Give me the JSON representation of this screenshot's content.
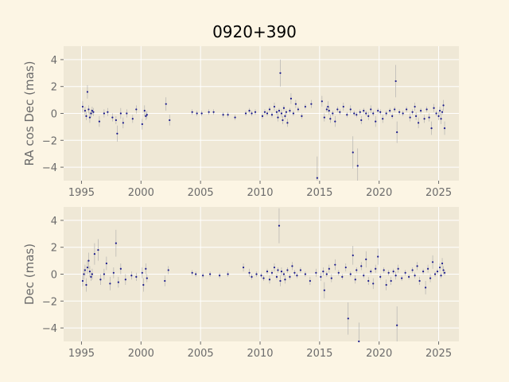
{
  "figure": {
    "title": "0920+390"
  },
  "colors": {
    "background": "#fcf5e4",
    "plot_bg": "#efe8d6",
    "grid": "#ffffff",
    "point": "#1a1a8c",
    "errorbar": "#aaaaaa",
    "tick_text": "#6b6b6b"
  },
  "chart_data": [
    {
      "type": "scatter",
      "ylabel": "RA cos Dec (mas)",
      "xlabel": "",
      "xlim": [
        1993.5,
        2026.7
      ],
      "ylim": [
        -5.0,
        5.0
      ],
      "xticks": [
        1995,
        2000,
        2005,
        2010,
        2015,
        2020,
        2025
      ],
      "yticks": [
        -4,
        -2,
        0,
        2,
        4
      ],
      "grid": true,
      "points": [
        [
          1995.1,
          0.5,
          0.4
        ],
        [
          1995.3,
          0.2,
          0.3
        ],
        [
          1995.4,
          -0.2,
          0.3
        ],
        [
          1995.5,
          1.6,
          0.5
        ],
        [
          1995.6,
          0.3,
          0.3
        ],
        [
          1995.7,
          -0.3,
          0.4
        ],
        [
          1995.8,
          0.0,
          0.3
        ],
        [
          1995.9,
          0.2,
          0.3
        ],
        [
          1996.0,
          0.1,
          0.3
        ],
        [
          1996.5,
          -0.6,
          0.4
        ],
        [
          1996.9,
          0.0,
          0.3
        ],
        [
          1997.2,
          0.1,
          0.3
        ],
        [
          1997.6,
          -0.3,
          0.3
        ],
        [
          1997.9,
          -0.5,
          0.3
        ],
        [
          1998.0,
          -1.5,
          0.6
        ],
        [
          1998.3,
          0.0,
          0.4
        ],
        [
          1998.5,
          -0.7,
          0.4
        ],
        [
          1998.8,
          0.0,
          0.3
        ],
        [
          1999.3,
          -0.4,
          0.3
        ],
        [
          1999.6,
          0.3,
          0.3
        ],
        [
          2000.1,
          -0.8,
          0.4
        ],
        [
          2000.3,
          0.2,
          0.4
        ],
        [
          2000.4,
          -0.2,
          0.3
        ],
        [
          2000.5,
          -0.1,
          0.3
        ],
        [
          2002.1,
          0.7,
          0.5
        ],
        [
          2002.4,
          -0.5,
          0.4
        ],
        [
          2004.3,
          0.1,
          0.2
        ],
        [
          2004.7,
          0.0,
          0.2
        ],
        [
          2005.1,
          0.0,
          0.2
        ],
        [
          2005.7,
          0.1,
          0.2
        ],
        [
          2006.1,
          0.1,
          0.2
        ],
        [
          2006.9,
          -0.1,
          0.2
        ],
        [
          2007.3,
          -0.1,
          0.2
        ],
        [
          2007.9,
          -0.3,
          0.2
        ],
        [
          2008.8,
          0.0,
          0.2
        ],
        [
          2009.1,
          0.2,
          0.2
        ],
        [
          2009.3,
          0.0,
          0.2
        ],
        [
          2009.6,
          0.1,
          0.2
        ],
        [
          2010.2,
          -0.2,
          0.2
        ],
        [
          2010.4,
          0.1,
          0.2
        ],
        [
          2010.6,
          0.0,
          0.2
        ],
        [
          2010.8,
          0.3,
          0.2
        ],
        [
          2011.0,
          -0.1,
          0.2
        ],
        [
          2011.2,
          0.5,
          0.3
        ],
        [
          2011.4,
          0.1,
          0.2
        ],
        [
          2011.5,
          -0.3,
          0.3
        ],
        [
          2011.6,
          0.2,
          0.2
        ],
        [
          2011.7,
          3.0,
          1.0
        ],
        [
          2011.8,
          0.0,
          0.3
        ],
        [
          2011.9,
          -0.5,
          0.3
        ],
        [
          2012.0,
          0.4,
          0.2
        ],
        [
          2012.1,
          -0.2,
          0.2
        ],
        [
          2012.2,
          0.1,
          0.2
        ],
        [
          2012.3,
          -0.7,
          0.3
        ],
        [
          2012.5,
          0.2,
          0.2
        ],
        [
          2012.6,
          1.1,
          0.4
        ],
        [
          2012.8,
          0.0,
          0.2
        ],
        [
          2013.0,
          0.7,
          0.3
        ],
        [
          2013.2,
          0.3,
          0.2
        ],
        [
          2013.5,
          -0.2,
          0.2
        ],
        [
          2013.8,
          0.5,
          0.2
        ],
        [
          2014.3,
          0.7,
          0.3
        ],
        [
          2014.8,
          -4.8,
          1.6
        ],
        [
          2015.2,
          0.9,
          0.4
        ],
        [
          2015.4,
          -0.3,
          0.3
        ],
        [
          2015.6,
          0.3,
          0.2
        ],
        [
          2015.7,
          0.5,
          0.4
        ],
        [
          2015.8,
          0.2,
          0.3
        ],
        [
          2015.9,
          -0.4,
          0.3
        ],
        [
          2016.1,
          0.0,
          0.2
        ],
        [
          2016.3,
          -0.6,
          0.4
        ],
        [
          2016.5,
          0.3,
          0.2
        ],
        [
          2016.7,
          0.1,
          0.2
        ],
        [
          2017.0,
          0.5,
          0.3
        ],
        [
          2017.3,
          -0.1,
          0.2
        ],
        [
          2017.6,
          0.3,
          0.3
        ],
        [
          2017.8,
          -2.9,
          1.2
        ],
        [
          2017.9,
          0.0,
          0.2
        ],
        [
          2018.1,
          -0.1,
          0.2
        ],
        [
          2018.2,
          -3.9,
          1.3
        ],
        [
          2018.4,
          0.1,
          0.2
        ],
        [
          2018.5,
          -0.5,
          0.3
        ],
        [
          2018.7,
          0.2,
          0.2
        ],
        [
          2018.9,
          0.0,
          0.2
        ],
        [
          2019.1,
          -0.2,
          0.3
        ],
        [
          2019.3,
          0.3,
          0.3
        ],
        [
          2019.5,
          0.0,
          0.2
        ],
        [
          2019.7,
          -0.6,
          0.4
        ],
        [
          2019.9,
          0.2,
          0.2
        ],
        [
          2020.1,
          0.1,
          0.2
        ],
        [
          2020.3,
          -0.4,
          0.3
        ],
        [
          2020.6,
          0.0,
          0.2
        ],
        [
          2020.9,
          0.2,
          0.2
        ],
        [
          2021.1,
          -0.2,
          0.2
        ],
        [
          2021.3,
          0.3,
          0.2
        ],
        [
          2021.4,
          2.4,
          1.2
        ],
        [
          2021.5,
          -1.4,
          0.8
        ],
        [
          2021.7,
          0.1,
          0.2
        ],
        [
          2022.0,
          0.0,
          0.2
        ],
        [
          2022.3,
          0.3,
          0.2
        ],
        [
          2022.6,
          -0.3,
          0.3
        ],
        [
          2022.8,
          0.1,
          0.2
        ],
        [
          2023.0,
          0.5,
          0.3
        ],
        [
          2023.1,
          -0.2,
          0.3
        ],
        [
          2023.3,
          -0.7,
          0.4
        ],
        [
          2023.5,
          0.2,
          0.2
        ],
        [
          2023.8,
          -0.4,
          0.3
        ],
        [
          2024.0,
          0.3,
          0.2
        ],
        [
          2024.2,
          -0.3,
          0.3
        ],
        [
          2024.4,
          -1.1,
          0.5
        ],
        [
          2024.6,
          0.4,
          0.3
        ],
        [
          2024.8,
          0.0,
          0.2
        ],
        [
          2025.0,
          -0.2,
          0.3
        ],
        [
          2025.1,
          0.2,
          0.3
        ],
        [
          2025.2,
          -0.4,
          0.4
        ],
        [
          2025.3,
          0.1,
          0.2
        ],
        [
          2025.4,
          0.6,
          0.4
        ],
        [
          2025.5,
          -1.1,
          0.5
        ]
      ]
    },
    {
      "type": "scatter",
      "ylabel": "Dec (mas)",
      "xlabel": "",
      "xlim": [
        1993.5,
        2026.7
      ],
      "ylim": [
        -5.0,
        5.0
      ],
      "xticks": [
        1995,
        2000,
        2005,
        2010,
        2015,
        2020,
        2025
      ],
      "yticks": [
        -4,
        -2,
        0,
        2,
        4
      ],
      "grid": true,
      "points": [
        [
          1995.1,
          -0.5,
          0.4
        ],
        [
          1995.2,
          0.0,
          0.4
        ],
        [
          1995.3,
          0.3,
          0.4
        ],
        [
          1995.4,
          -0.8,
          0.5
        ],
        [
          1995.5,
          0.5,
          0.5
        ],
        [
          1995.6,
          1.0,
          0.6
        ],
        [
          1995.7,
          0.2,
          0.4
        ],
        [
          1995.8,
          -0.2,
          0.3
        ],
        [
          1995.9,
          0.0,
          0.4
        ],
        [
          1996.1,
          1.5,
          0.8
        ],
        [
          1996.4,
          1.8,
          0.8
        ],
        [
          1996.6,
          -0.4,
          0.4
        ],
        [
          1996.9,
          0.0,
          0.4
        ],
        [
          1997.1,
          0.8,
          0.5
        ],
        [
          1997.4,
          -0.7,
          0.5
        ],
        [
          1997.7,
          0.1,
          0.4
        ],
        [
          1997.9,
          2.3,
          1.0
        ],
        [
          1998.1,
          -0.6,
          0.4
        ],
        [
          1998.3,
          0.4,
          0.4
        ],
        [
          1998.7,
          -0.4,
          0.4
        ],
        [
          1999.2,
          -0.1,
          0.3
        ],
        [
          1999.6,
          -0.2,
          0.3
        ],
        [
          2000.1,
          0.1,
          0.4
        ],
        [
          2000.2,
          -0.8,
          0.5
        ],
        [
          2000.4,
          0.4,
          0.4
        ],
        [
          2000.5,
          -0.3,
          0.3
        ],
        [
          2002.0,
          -0.5,
          0.4
        ],
        [
          2002.3,
          0.3,
          0.3
        ],
        [
          2004.3,
          0.1,
          0.2
        ],
        [
          2004.6,
          0.0,
          0.2
        ],
        [
          2005.2,
          -0.1,
          0.2
        ],
        [
          2005.8,
          0.0,
          0.2
        ],
        [
          2006.6,
          -0.1,
          0.2
        ],
        [
          2007.3,
          0.0,
          0.2
        ],
        [
          2008.6,
          0.5,
          0.3
        ],
        [
          2009.1,
          0.1,
          0.3
        ],
        [
          2009.3,
          -0.2,
          0.2
        ],
        [
          2009.7,
          0.0,
          0.2
        ],
        [
          2010.1,
          -0.1,
          0.2
        ],
        [
          2010.3,
          -0.3,
          0.2
        ],
        [
          2010.6,
          0.2,
          0.2
        ],
        [
          2010.8,
          -0.4,
          0.3
        ],
        [
          2011.0,
          0.1,
          0.2
        ],
        [
          2011.2,
          0.5,
          0.3
        ],
        [
          2011.4,
          -0.2,
          0.2
        ],
        [
          2011.5,
          0.3,
          0.2
        ],
        [
          2011.6,
          3.6,
          1.3
        ],
        [
          2011.7,
          -0.5,
          0.4
        ],
        [
          2011.8,
          0.2,
          0.3
        ],
        [
          2012.0,
          0.0,
          0.2
        ],
        [
          2012.1,
          -0.4,
          0.3
        ],
        [
          2012.3,
          0.3,
          0.2
        ],
        [
          2012.5,
          -0.2,
          0.2
        ],
        [
          2012.7,
          0.6,
          0.3
        ],
        [
          2012.9,
          0.1,
          0.2
        ],
        [
          2013.1,
          -0.1,
          0.2
        ],
        [
          2013.4,
          0.3,
          0.2
        ],
        [
          2013.8,
          0.0,
          0.2
        ],
        [
          2014.2,
          -0.5,
          0.3
        ],
        [
          2014.7,
          0.1,
          0.3
        ],
        [
          2015.1,
          -0.2,
          0.3
        ],
        [
          2015.3,
          0.2,
          0.3
        ],
        [
          2015.4,
          -1.2,
          0.6
        ],
        [
          2015.6,
          0.0,
          0.2
        ],
        [
          2015.8,
          0.4,
          0.3
        ],
        [
          2016.0,
          -0.3,
          0.3
        ],
        [
          2016.3,
          0.7,
          0.4
        ],
        [
          2016.6,
          0.1,
          0.2
        ],
        [
          2016.9,
          -0.2,
          0.2
        ],
        [
          2017.2,
          0.5,
          0.3
        ],
        [
          2017.4,
          -3.3,
          1.2
        ],
        [
          2017.6,
          0.0,
          0.2
        ],
        [
          2017.8,
          1.4,
          0.7
        ],
        [
          2018.0,
          -0.4,
          0.3
        ],
        [
          2018.1,
          0.3,
          0.2
        ],
        [
          2018.3,
          -5.0,
          1.4
        ],
        [
          2018.5,
          0.6,
          0.3
        ],
        [
          2018.7,
          -0.1,
          0.2
        ],
        [
          2018.9,
          1.1,
          0.6
        ],
        [
          2019.1,
          -0.5,
          0.3
        ],
        [
          2019.3,
          0.2,
          0.2
        ],
        [
          2019.5,
          -0.7,
          0.4
        ],
        [
          2019.7,
          0.4,
          0.3
        ],
        [
          2019.9,
          1.3,
          0.6
        ],
        [
          2020.1,
          -0.2,
          0.2
        ],
        [
          2020.4,
          0.3,
          0.2
        ],
        [
          2020.6,
          -0.8,
          0.4
        ],
        [
          2020.8,
          0.1,
          0.2
        ],
        [
          2021.0,
          -0.5,
          0.3
        ],
        [
          2021.2,
          0.2,
          0.2
        ],
        [
          2021.4,
          -0.1,
          0.3
        ],
        [
          2021.5,
          -3.8,
          1.4
        ],
        [
          2021.6,
          0.4,
          0.3
        ],
        [
          2021.9,
          -0.3,
          0.2
        ],
        [
          2022.2,
          0.1,
          0.2
        ],
        [
          2022.5,
          -0.2,
          0.2
        ],
        [
          2022.8,
          0.3,
          0.2
        ],
        [
          2023.0,
          -0.1,
          0.2
        ],
        [
          2023.2,
          0.6,
          0.3
        ],
        [
          2023.4,
          -0.5,
          0.3
        ],
        [
          2023.7,
          0.2,
          0.2
        ],
        [
          2023.9,
          -1.0,
          0.5
        ],
        [
          2024.1,
          0.4,
          0.3
        ],
        [
          2024.3,
          -0.3,
          0.3
        ],
        [
          2024.5,
          0.9,
          0.5
        ],
        [
          2024.7,
          0.0,
          0.2
        ],
        [
          2024.9,
          0.2,
          0.2
        ],
        [
          2025.1,
          0.5,
          0.3
        ],
        [
          2025.2,
          -0.1,
          0.2
        ],
        [
          2025.3,
          0.8,
          0.4
        ],
        [
          2025.4,
          0.3,
          0.3
        ],
        [
          2025.5,
          0.1,
          0.2
        ]
      ]
    }
  ]
}
